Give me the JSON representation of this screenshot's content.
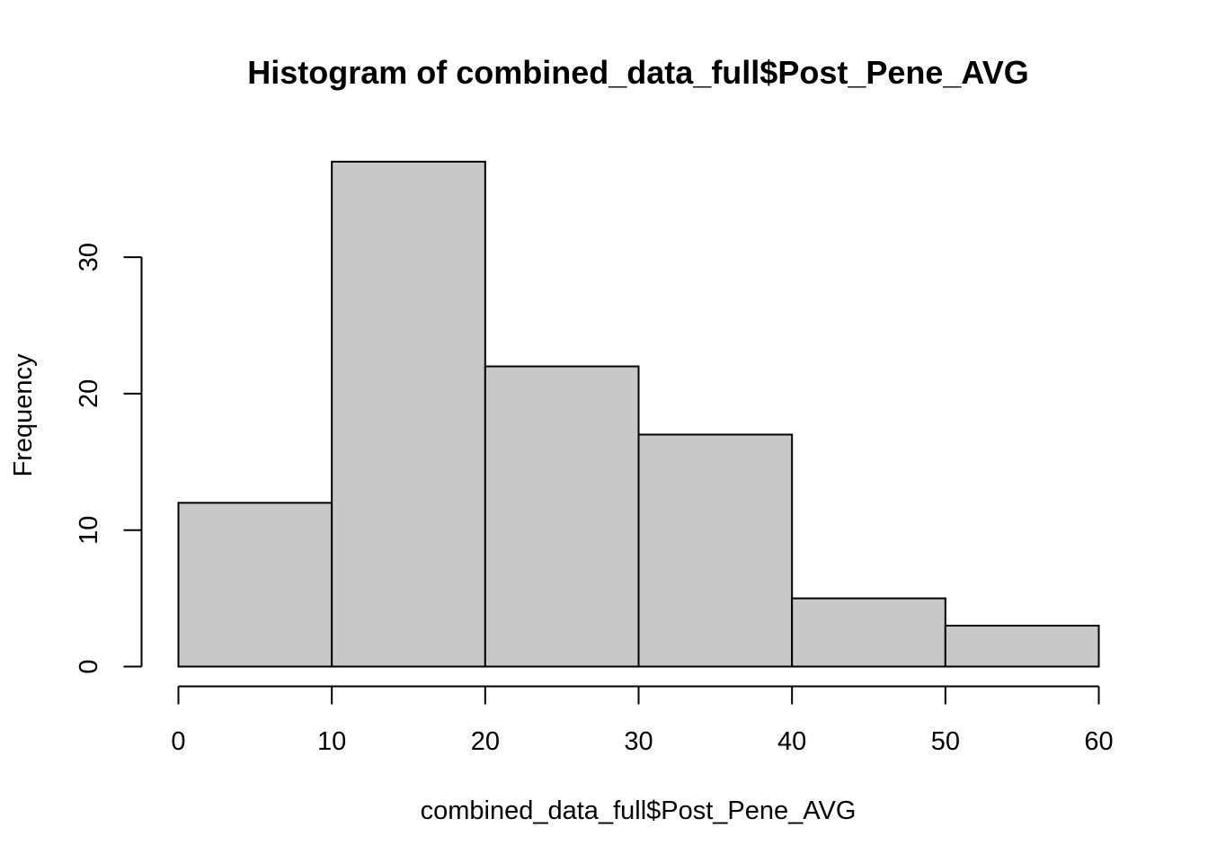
{
  "chart_data": {
    "type": "bar",
    "title": "Histogram of combined_data_full$Post_Pene_AVG",
    "xlabel": "combined_data_full$Post_Pene_AVG",
    "ylabel": "Frequency",
    "bins": [
      {
        "from": 0,
        "to": 10,
        "count": 12
      },
      {
        "from": 10,
        "to": 20,
        "count": 37
      },
      {
        "from": 20,
        "to": 30,
        "count": 22
      },
      {
        "from": 30,
        "to": 40,
        "count": 17
      },
      {
        "from": 40,
        "to": 50,
        "count": 5
      },
      {
        "from": 50,
        "to": 60,
        "count": 3
      }
    ],
    "xlim": [
      0,
      60
    ],
    "ylim": [
      0,
      37
    ],
    "x_ticks": [
      0,
      10,
      20,
      30,
      40,
      50,
      60
    ],
    "y_ticks": [
      0,
      10,
      20,
      30
    ],
    "bar_color": "#c8c8c8",
    "grid": false,
    "legend": "none"
  }
}
